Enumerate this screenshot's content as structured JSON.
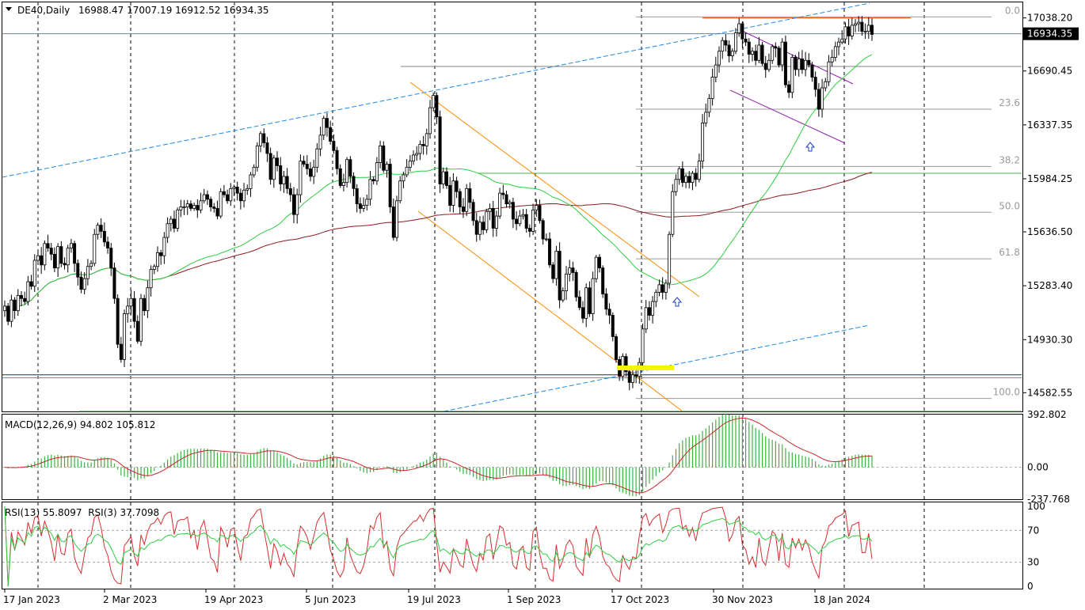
{
  "chart_data": [
    {
      "type": "candlestick",
      "symbol": "DE40,Daily",
      "ohlc_label": "16988.47 17007.19 16912.52 16934.35",
      "open": 16988.47,
      "high": 17007.19,
      "low": 16912.52,
      "close": 16934.35,
      "last_price": "16934.35",
      "ylim": [
        14460,
        17140
      ],
      "y_ticks": [
        "17038.20",
        "16690.45",
        "16337.35",
        "15984.25",
        "15636.50",
        "15283.40",
        "14930.30",
        "14582.55"
      ],
      "x_ticks": [
        "17 Jan 2023",
        "2 Mar 2023",
        "19 Apr 2023",
        "5 Jun 2023",
        "19 Jul 2023",
        "1 Sep 2023",
        "17 Oct 2023",
        "30 Nov 2023",
        "18 Jan 2024"
      ],
      "grid": "vertical-dashed",
      "fib_levels": [
        {
          "label": "0.0",
          "value": 17045
        },
        {
          "label": "23.6",
          "value": 16440
        },
        {
          "label": "38.2",
          "value": 16065
        },
        {
          "label": "50.0",
          "value": 15765
        },
        {
          "label": "61.8",
          "value": 15460
        },
        {
          "label": "100.0",
          "value": 14545
        }
      ],
      "horizontal_levels": [
        16720,
        16020,
        14700,
        14680,
        14460
      ],
      "resistance_level": 17038,
      "closes": [
        15150,
        15050,
        15190,
        15120,
        15220,
        15200,
        15180,
        15310,
        15280,
        15450,
        15480,
        15420,
        15560,
        15530,
        15490,
        15400,
        15540,
        15430,
        15420,
        15530,
        15560,
        15430,
        15340,
        15260,
        15330,
        15410,
        15430,
        15620,
        15680,
        15640,
        15570,
        15530,
        15400,
        15200,
        14900,
        14800,
        15100,
        15150,
        15200,
        15050,
        14920,
        15200,
        15120,
        15270,
        15390,
        15410,
        15500,
        15480,
        15600,
        15690,
        15720,
        15660,
        15780,
        15800,
        15800,
        15820,
        15790,
        15810,
        15780,
        15840,
        15880,
        15850,
        15800,
        15790,
        15740,
        15900,
        15880,
        15840,
        15920,
        15930,
        15890,
        15840,
        15910,
        15920,
        16010,
        16060,
        16200,
        16280,
        16220,
        16150,
        15980,
        16120,
        16070,
        15950,
        16000,
        15920,
        15880,
        15750,
        15880,
        16100,
        16080,
        16050,
        16000,
        16060,
        16180,
        16270,
        16380,
        16320,
        16230,
        16170,
        16050,
        15940,
        15960,
        16110,
        16000,
        15920,
        15820,
        15790,
        15810,
        15850,
        15980,
        15970,
        16090,
        16200,
        16040,
        16080,
        15800,
        15600,
        15840,
        15970,
        16010,
        16060,
        16100,
        16140,
        16150,
        16210,
        16200,
        16280,
        16450,
        16530,
        16390,
        15950,
        16030,
        15940,
        15810,
        15970,
        15900,
        15800,
        15770,
        15920,
        15830,
        15710,
        15620,
        15700,
        15650,
        15770,
        15790,
        15660,
        15740,
        15890,
        15880,
        15820,
        15830,
        15720,
        15690,
        15740,
        15750,
        15660,
        15640,
        15780,
        15810,
        15710,
        15590,
        15590,
        15420,
        15330,
        15510,
        15190,
        15250,
        15360,
        15400,
        15370,
        15210,
        15140,
        15070,
        15270,
        15100,
        15330,
        15470,
        15400,
        15230,
        15130,
        15090,
        14950,
        14800,
        14690,
        14820,
        14720,
        14650,
        14700,
        14690,
        14780,
        15000,
        15140,
        15090,
        15180,
        15240,
        15290,
        15240,
        15300,
        15620,
        15900,
        15980,
        16050,
        15960,
        16000,
        15960,
        16020,
        15980,
        16100,
        16350,
        16420,
        16510,
        16650,
        16730,
        16820,
        16890,
        16860,
        16790,
        16820,
        16940,
        17000,
        16900,
        16880,
        16800,
        16820,
        16760,
        16860,
        16740,
        16700,
        16760,
        16850,
        16840,
        16730,
        16880,
        16600,
        16550,
        16780,
        16700,
        16770,
        16700,
        16760,
        16730,
        16650,
        16570,
        16440,
        16580,
        16620,
        16750,
        16780,
        16850,
        16880,
        16900,
        16980,
        16920,
        16990,
        17000,
        17010,
        16950,
        16950,
        16990,
        16930
      ],
      "macd": {
        "label": "MACD(12,26,9) 94.802 105.812",
        "ylim": [
          -237.768,
          392.802
        ],
        "ticks": [
          "392.802",
          "0.00",
          "-237.768"
        ]
      },
      "rsi": {
        "label": "RSI(13) 55.8097  RSI(3) 37.7098",
        "ylim": [
          0,
          100
        ],
        "ticks": [
          "100",
          "70",
          "30",
          "0"
        ]
      }
    }
  ]
}
